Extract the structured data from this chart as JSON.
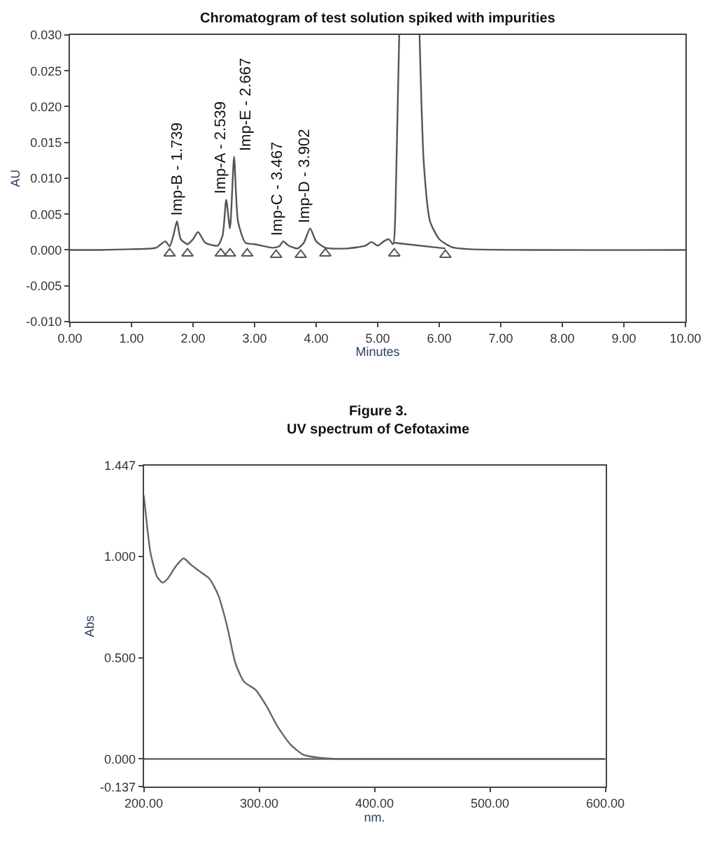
{
  "chart_data": [
    {
      "type": "line",
      "title": "Chromatogram of test solution spiked with impurities",
      "xlabel": "Minutes",
      "ylabel": "AU",
      "xlim": [
        0,
        10
      ],
      "ylim": [
        -0.01,
        0.03
      ],
      "xticks": [
        {
          "value": 0,
          "label": "0.00"
        },
        {
          "value": 1,
          "label": "1.00"
        },
        {
          "value": 2,
          "label": "2.00"
        },
        {
          "value": 3,
          "label": "3.00"
        },
        {
          "value": 4,
          "label": "4.00"
        },
        {
          "value": 5,
          "label": "5.00"
        },
        {
          "value": 6,
          "label": "6.00"
        },
        {
          "value": 7,
          "label": "7.00"
        },
        {
          "value": 8,
          "label": "8.00"
        },
        {
          "value": 9,
          "label": "9.00"
        },
        {
          "value": 10,
          "label": "10.00"
        }
      ],
      "yticks": [
        {
          "value": -0.01,
          "label": "-0.010"
        },
        {
          "value": -0.005,
          "label": "-0.005"
        },
        {
          "value": 0,
          "label": "0.000"
        },
        {
          "value": 0.005,
          "label": "0.005"
        },
        {
          "value": 0.01,
          "label": "0.010"
        },
        {
          "value": 0.015,
          "label": "0.015"
        },
        {
          "value": 0.02,
          "label": "0.020"
        },
        {
          "value": 0.025,
          "label": "0.025"
        },
        {
          "value": 0.03,
          "label": "0.030"
        }
      ],
      "series": [
        {
          "color": "#555555",
          "x": [
            0,
            0.5,
            1.0,
            1.4,
            1.55,
            1.62,
            1.68,
            1.739,
            1.8,
            1.91,
            2.0,
            2.08,
            2.2,
            2.4,
            2.48,
            2.539,
            2.6,
            2.667,
            2.73,
            2.85,
            3.0,
            3.3,
            3.4,
            3.467,
            3.55,
            3.7,
            3.8,
            3.902,
            4.0,
            4.15,
            4.5,
            4.8,
            4.9,
            5.0,
            5.1,
            5.18,
            5.25,
            5.3,
            5.35,
            5.5,
            5.68,
            5.75,
            5.85,
            6.0,
            6.2,
            6.5,
            10
          ],
          "values": [
            0,
            0,
            0.0001,
            0.0003,
            0.0012,
            0.0005,
            0.002,
            0.004,
            0.0015,
            0.0008,
            0.0015,
            0.0025,
            0.001,
            0.0006,
            0.002,
            0.007,
            0.003,
            0.013,
            0.004,
            0.001,
            0.0008,
            0.0003,
            0.0005,
            0.0012,
            0.0006,
            0.0002,
            0.001,
            0.003,
            0.0012,
            0.0003,
            0.0002,
            0.0006,
            0.0011,
            0.0006,
            0.0012,
            0.0015,
            0.0008,
            0.01,
            0.03,
            null,
            0.03,
            0.012,
            0.004,
            0.0015,
            0.0004,
            0.0001,
            0
          ]
        },
        {
          "color": "#555555",
          "x": [
            5.27,
            6.1
          ],
          "values": [
            0.001,
            0.0002
          ]
        },
        {
          "type": "scatter",
          "marker": "triangle",
          "color": "#555555",
          "x": [
            1.62,
            1.91,
            2.45,
            2.6,
            2.88,
            3.35,
            3.75,
            4.15,
            5.27,
            6.1
          ],
          "values": [
            -0.0005,
            -0.0005,
            -0.0005,
            -0.0005,
            -0.0005,
            -0.0007,
            -0.0007,
            -0.0005,
            -0.0005,
            -0.0007
          ]
        }
      ],
      "annotations": [
        {
          "text": "Imp-B - 1.739",
          "x": 1.739,
          "y": 0.004
        },
        {
          "text": "Imp-A - 2.539",
          "x": 2.539,
          "y": 0.007
        },
        {
          "text": "Imp-E - 2.667",
          "x": 2.667,
          "y": 0.013
        },
        {
          "text": "Imp-C - 3.467",
          "x": 3.467,
          "y": 0.0012
        },
        {
          "text": "Imp-D - 3.902",
          "x": 3.902,
          "y": 0.003
        }
      ]
    },
    {
      "type": "line",
      "title": "Figure 3.\nUV spectrum of Cefotaxime",
      "xlabel": "nm.",
      "ylabel": "Abs",
      "xlim": [
        200,
        600
      ],
      "ylim": [
        -0.137,
        1.447
      ],
      "xticks": [
        {
          "value": 200,
          "label": "200.00"
        },
        {
          "value": 300,
          "label": "300.00"
        },
        {
          "value": 400,
          "label": "400.00"
        },
        {
          "value": 500,
          "label": "500.00"
        },
        {
          "value": 600,
          "label": "600.00"
        }
      ],
      "yticks": [
        {
          "value": -0.137,
          "label": "-0.137"
        },
        {
          "value": 0,
          "label": "0.000"
        },
        {
          "value": 0.5,
          "label": "0.500"
        },
        {
          "value": 1.0,
          "label": "1.000"
        },
        {
          "value": 1.447,
          "label": "1.447"
        }
      ],
      "series": [
        {
          "color": "#666666",
          "x": [
            200,
            201.9,
            205.7,
            211.4,
            216.3,
            220.8,
            227.7,
            234.5,
            240.5,
            247.3,
            256.8,
            264.4,
            272,
            279.5,
            287,
            297,
            306.4,
            315.9,
            327.3,
            338.6,
            353.8,
            368.9,
            400,
            500,
            600
          ],
          "values": [
            1.3,
            1.2,
            1.02,
            0.9,
            0.87,
            0.89,
            0.95,
            0.99,
            0.96,
            0.93,
            0.89,
            0.81,
            0.66,
            0.47,
            0.38,
            0.34,
            0.26,
            0.16,
            0.07,
            0.02,
            0.005,
            0,
            0,
            0,
            0
          ]
        },
        {
          "color": "#666666",
          "x": [
            200,
            600
          ],
          "values": [
            0,
            0
          ]
        }
      ]
    }
  ]
}
